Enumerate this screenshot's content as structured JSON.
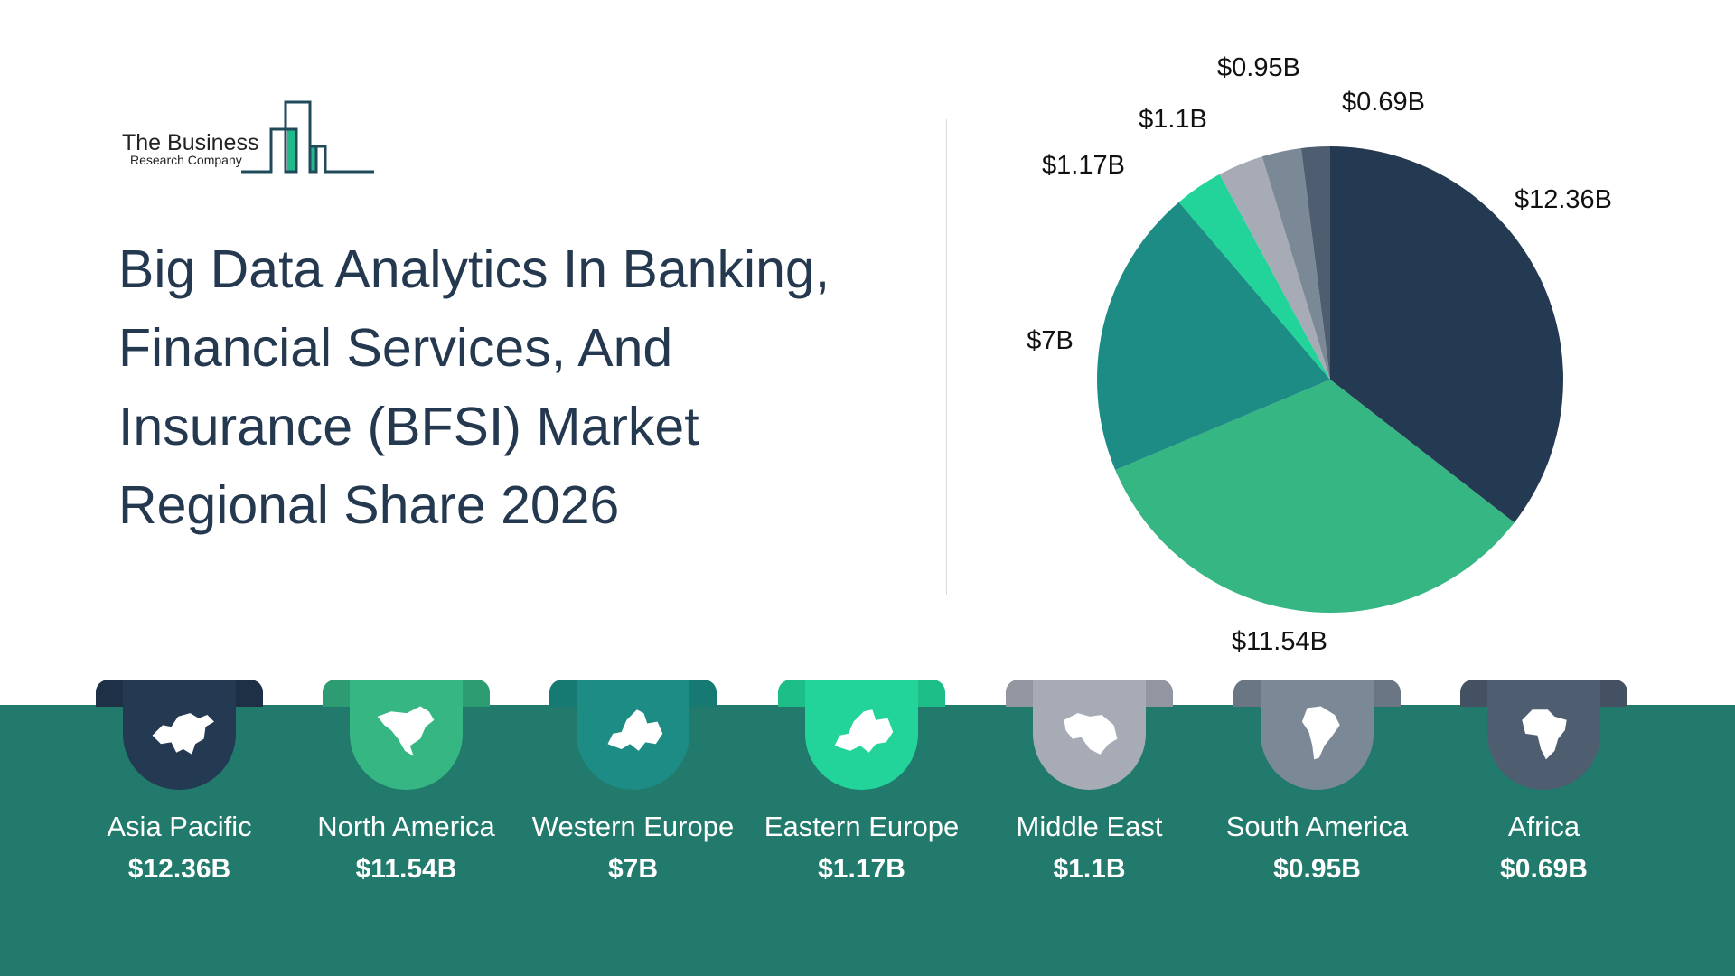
{
  "logo": {
    "line1": "The Business",
    "line2": "Research Company"
  },
  "title": "Big Data Analytics In Banking, Financial Services, And Insurance (BFSI) Market Regional Share 2026",
  "chart_data": {
    "type": "pie",
    "title": "Big Data Analytics In Banking, Financial Services, And Insurance (BFSI) Market Regional Share 2026",
    "unit": "$B",
    "categories": [
      "Asia Pacific",
      "North America",
      "Western Europe",
      "Eastern Europe",
      "Middle East",
      "South America",
      "Africa"
    ],
    "values": [
      12.36,
      11.54,
      7,
      1.17,
      1.1,
      0.95,
      0.69
    ],
    "labels": [
      "$12.36B",
      "$11.54B",
      "$7B",
      "$1.17B",
      "$1.1B",
      "$0.95B",
      "$0.69B"
    ],
    "colors": [
      "#243a52",
      "#35b683",
      "#1c8c84",
      "#22d49a",
      "#a6abb5",
      "#7b8896",
      "#4e5d6f"
    ],
    "start": "12 o'clock",
    "direction": "clockwise"
  },
  "regions": [
    {
      "name": "Asia Pacific",
      "value": "$12.36B",
      "icon": "asia-map-icon",
      "color": "#243a52",
      "ear": "#1e3045"
    },
    {
      "name": "North America",
      "value": "$11.54B",
      "icon": "north-america-map-icon",
      "color": "#35b683",
      "ear": "#2e9c72"
    },
    {
      "name": "Western Europe",
      "value": "$7B",
      "icon": "western-europe-map-icon",
      "color": "#1c8c84",
      "ear": "#177a72"
    },
    {
      "name": "Eastern Europe",
      "value": "$1.17B",
      "icon": "eastern-europe-map-icon",
      "color": "#22d49a",
      "ear": "#1dbd88"
    },
    {
      "name": "Middle East",
      "value": "$1.1B",
      "icon": "middle-east-map-icon",
      "color": "#a6abb5",
      "ear": "#9196a1"
    },
    {
      "name": "South America",
      "value": "$0.95B",
      "icon": "south-america-map-icon",
      "color": "#7b8896",
      "ear": "#6a7684"
    },
    {
      "name": "Africa",
      "value": "$0.69B",
      "icon": "africa-map-icon",
      "color": "#4e5d6f",
      "ear": "#435163"
    }
  ],
  "band_color": "#217a6b"
}
